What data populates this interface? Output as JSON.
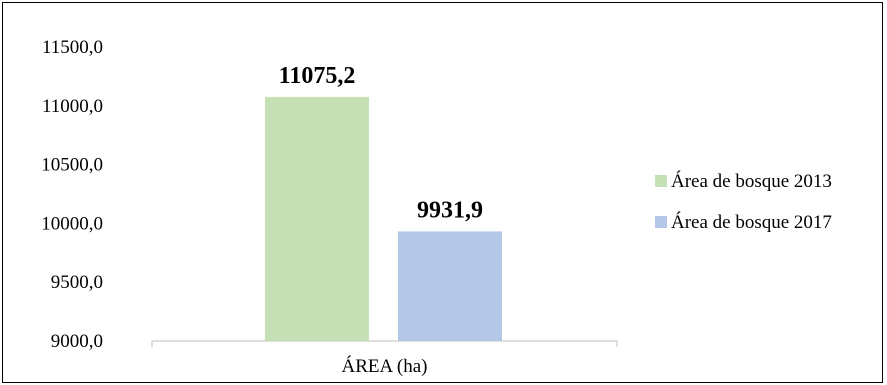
{
  "chart_data": {
    "type": "bar",
    "title": "",
    "xlabel": "",
    "ylabel": "",
    "categories": [
      "ÁREA (ha)"
    ],
    "series": [
      {
        "name": "Área de bosque 2013",
        "values": [
          11075.2
        ],
        "label": "11075,2",
        "color": "#c5e0b4"
      },
      {
        "name": "Área de bosque 2017",
        "values": [
          9931.9
        ],
        "label": "9931,9",
        "color": "#b4c7e7"
      }
    ],
    "ylim": [
      9000,
      11500
    ],
    "yticks": [
      9000,
      9500,
      10000,
      10500,
      11000,
      11500
    ],
    "ytick_labels": [
      "9000,0",
      "9500,0",
      "10000,0",
      "10500,0",
      "11000,0",
      "11500,0"
    ],
    "grid": false,
    "legend_position": "right"
  }
}
